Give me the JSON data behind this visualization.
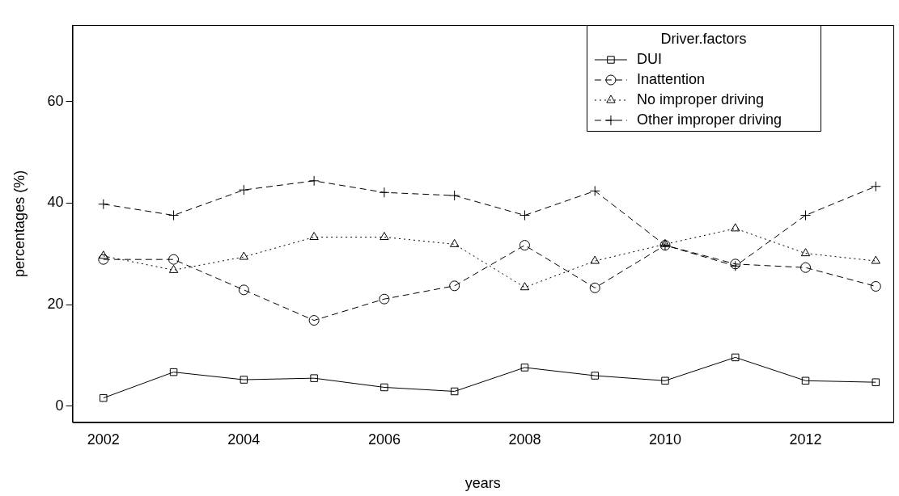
{
  "chart_data": {
    "type": "line",
    "xlabel": "years",
    "ylabel": "percentages (%)",
    "legend_title": "Driver.factors",
    "legend": "top right",
    "grid": false,
    "x": [
      2002,
      2003,
      2004,
      2005,
      2006,
      2007,
      2008,
      2009,
      2010,
      2011,
      2012,
      2013
    ],
    "xlim": [
      2001.56,
      2013.25
    ],
    "xticks": [
      2002,
      2004,
      2006,
      2008,
      2010,
      2012
    ],
    "ylim": [
      -3.2,
      75.1
    ],
    "yticks": [
      0,
      20,
      40,
      60
    ],
    "series": [
      {
        "name": "DUI",
        "color": "#000000",
        "marker": "square",
        "line_style": "solid",
        "values": [
          1.6,
          6.7,
          5.2,
          5.5,
          3.7,
          2.9,
          7.6,
          6.0,
          5.0,
          9.6,
          5.0,
          4.7
        ]
      },
      {
        "name": "Inattention",
        "color": "#000000",
        "marker": "circle",
        "line_style": "dashed",
        "values": [
          28.9,
          28.9,
          22.9,
          16.9,
          21.1,
          23.7,
          31.7,
          23.3,
          31.7,
          28.0,
          27.3,
          23.6
        ]
      },
      {
        "name": "No improper driving",
        "color": "#000000",
        "marker": "triangle",
        "line_style": "dotted",
        "values": [
          29.6,
          26.8,
          29.4,
          33.3,
          33.3,
          31.9,
          23.4,
          28.6,
          31.9,
          35.0,
          30.1,
          28.6
        ]
      },
      {
        "name": "Other improper driving",
        "color": "#000000",
        "marker": "cross",
        "line_style": "dashed",
        "values": [
          39.8,
          37.6,
          42.6,
          44.4,
          42.1,
          41.5,
          37.6,
          42.4,
          31.7,
          27.6,
          37.6,
          43.3
        ]
      }
    ]
  }
}
